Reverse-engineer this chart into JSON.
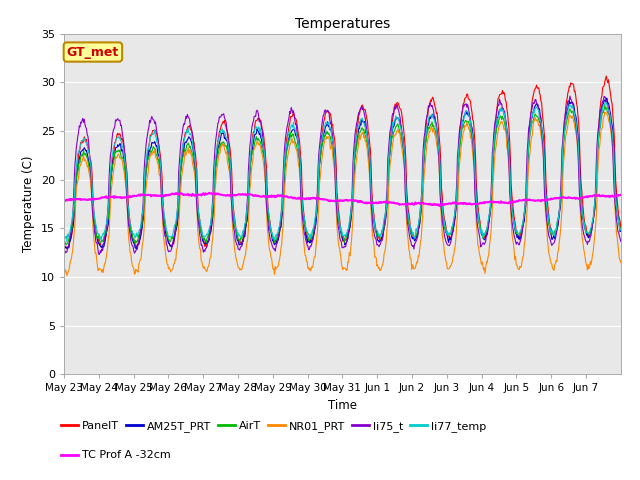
{
  "title": "Temperatures",
  "xlabel": "Time",
  "ylabel": "Temperature (C)",
  "ylim": [
    0,
    35
  ],
  "yticks": [
    0,
    5,
    10,
    15,
    20,
    25,
    30,
    35
  ],
  "n_days": 16,
  "x_labels": [
    "May 23",
    "May 24",
    "May 25",
    "May 26",
    "May 27",
    "May 28",
    "May 29",
    "May 30",
    "May 31",
    "Jun 1",
    "Jun 2",
    "Jun 3",
    "Jun 4",
    "Jun 5",
    "Jun 6",
    "Jun 7"
  ],
  "series_order": [
    "PanelT",
    "AM25T_PRT",
    "AirT",
    "NR01_PRT",
    "li75_t",
    "li77_temp",
    "TC Prof A -32cm"
  ],
  "series": {
    "PanelT": {
      "color": "#FF0000",
      "lw": 0.8
    },
    "AM25T_PRT": {
      "color": "#0000CC",
      "lw": 0.8
    },
    "AirT": {
      "color": "#00BB00",
      "lw": 0.8
    },
    "NR01_PRT": {
      "color": "#FF8800",
      "lw": 0.8
    },
    "li75_t": {
      "color": "#8800CC",
      "lw": 0.8
    },
    "li77_temp": {
      "color": "#00CCCC",
      "lw": 0.8
    },
    "TC Prof A -32cm": {
      "color": "#FF00FF",
      "lw": 1.5
    }
  },
  "annotation_text": "GT_met",
  "annotation_color": "#CC0000",
  "annotation_bg": "#FFFF99",
  "annotation_border": "#BB8800",
  "bg_color": "#E8E8E8",
  "fig_color": "#FFFFFF",
  "legend_ncol": 6,
  "legend_row2": [
    "TC Prof A -32cm"
  ]
}
